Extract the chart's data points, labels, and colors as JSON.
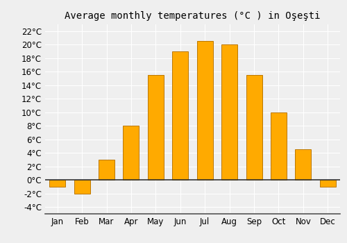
{
  "title": "Average monthly temperatures (°C ) in Oşeşti",
  "months": [
    "Jan",
    "Feb",
    "Mar",
    "Apr",
    "May",
    "Jun",
    "Jul",
    "Aug",
    "Sep",
    "Oct",
    "Nov",
    "Dec"
  ],
  "temperatures": [
    -1,
    -2,
    3,
    8,
    15.5,
    19,
    20.5,
    20,
    15.5,
    10,
    4.5,
    -1
  ],
  "bar_color": "#FFAA00",
  "bar_edge_color": "#BB7700",
  "background_color": "#EFEFEF",
  "grid_color": "#FFFFFF",
  "yticks": [
    -4,
    -2,
    0,
    2,
    4,
    6,
    8,
    10,
    12,
    14,
    16,
    18,
    20,
    22
  ],
  "ylim": [
    -5,
    23
  ],
  "title_fontsize": 10,
  "tick_fontsize": 8.5
}
